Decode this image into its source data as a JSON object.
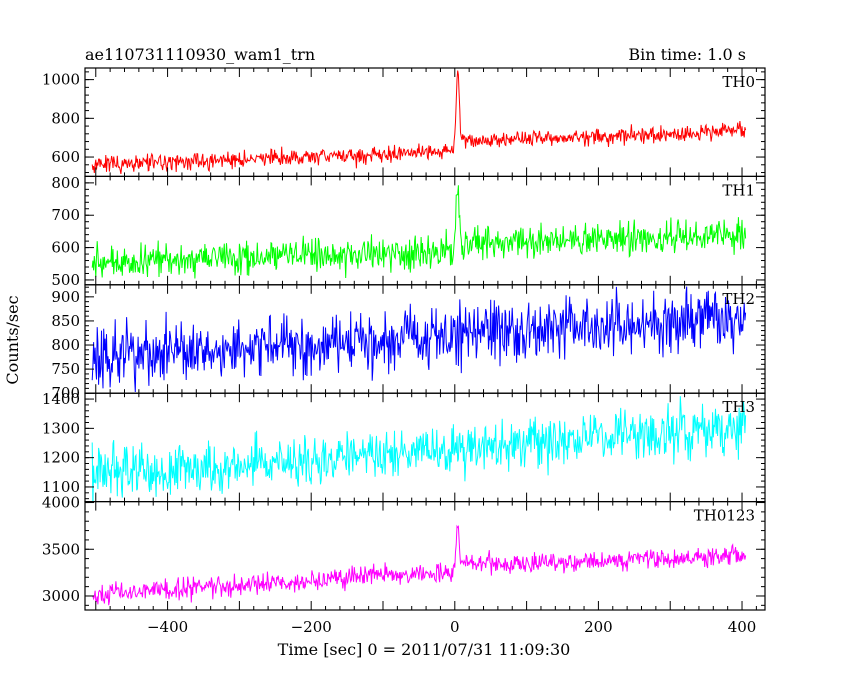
{
  "chart_data": {
    "type": "line",
    "title": "ae110731110930_wam1_trn",
    "bin_label": "Bin time: 1.0 s",
    "xlabel": "Time [sec] 0 = 2011/07/31 11:09:30",
    "ylabel": "Counts/sec",
    "xlim": [
      -515,
      432
    ],
    "x_ticks": [
      -400,
      -200,
      0,
      200,
      400
    ],
    "x_start": -505,
    "x_end": 405,
    "panels": [
      {
        "name": "TH0",
        "color": "#ff0000",
        "ylim": [
          500,
          1060
        ],
        "ticks": [
          600,
          800,
          1000
        ],
        "base_start": 560,
        "base_end": 680,
        "noise": 22,
        "spike_height": 430,
        "level_shift": 55,
        "shift_decay": 0
      },
      {
        "name": "TH1",
        "color": "#00ff00",
        "ylim": [
          485,
          820
        ],
        "ticks": [
          500,
          600,
          700,
          800
        ],
        "base_start": 555,
        "base_end": 625,
        "noise": 25,
        "spike_height": 200,
        "level_shift": 15,
        "shift_decay": 0
      },
      {
        "name": "TH2",
        "color": "#0000ff",
        "ylim": [
          700,
          925
        ],
        "ticks": [
          700,
          750,
          800,
          850,
          900
        ],
        "base_start": 775,
        "base_end": 855,
        "noise": 30,
        "spike_height": 0,
        "level_shift": 0,
        "shift_decay": 0
      },
      {
        "name": "TH3",
        "color": "#00ffff",
        "ylim": [
          1050,
          1420
        ],
        "ticks": [
          1100,
          1200,
          1300,
          1400
        ],
        "base_start": 1140,
        "base_end": 1305,
        "noise": 42,
        "spike_height": 0,
        "level_shift": 0,
        "shift_decay": 0
      },
      {
        "name": "TH0123",
        "color": "#ff00ff",
        "ylim": [
          2850,
          4010
        ],
        "ticks": [
          3000,
          3500,
          4000
        ],
        "base_start": 3020,
        "base_end": 3460,
        "noise": 55,
        "spike_height": 550,
        "level_shift": 90,
        "shift_decay": 80
      }
    ]
  }
}
